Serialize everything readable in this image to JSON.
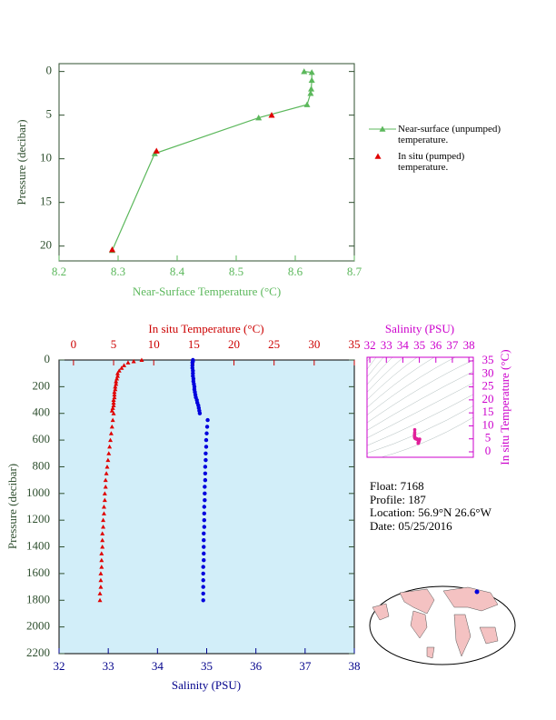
{
  "chart_data": [
    {
      "type": "line",
      "xlabel": "Near-Surface Temperature (°C)",
      "ylabel": "Pressure (decibar)",
      "xlim": [
        8.2,
        8.7
      ],
      "ylim": [
        21.7,
        -0.9
      ],
      "xticks": [
        8.2,
        8.3,
        8.4,
        8.5,
        8.6,
        8.7
      ],
      "yticks": [
        0,
        5,
        10,
        15,
        20
      ],
      "legend": "right",
      "series": [
        {
          "name": "Near-surface (unpumped) temperature.",
          "color": "#5cb85c",
          "style": "line",
          "values": [
            8.615,
            8.628,
            8.628,
            8.627,
            8.626,
            8.62,
            8.538,
            8.362,
            8.29
          ],
          "pressure": [
            0,
            0.1,
            1,
            2,
            2.5,
            3.8,
            5.3,
            9.4,
            20.5
          ]
        },
        {
          "name": "In situ (pumped) temperature.",
          "color": "#e00000",
          "style": "markers",
          "values": [
            8.56,
            8.365,
            8.29
          ],
          "pressure": [
            5,
            9.1,
            20.4
          ]
        }
      ]
    },
    {
      "type": "scatter",
      "xlabel": "Salinity (PSU)",
      "x2label": "In situ Temperature (°C)",
      "ylabel": "Pressure (decibar)",
      "xlim": [
        32,
        38
      ],
      "x2lim": [
        -1.8,
        35
      ],
      "ylim": [
        2200,
        0
      ],
      "xticks": [
        32,
        33,
        34,
        35,
        36,
        37,
        38
      ],
      "x2ticks": [
        0,
        5,
        10,
        15,
        20,
        25,
        30,
        35
      ],
      "yticks": [
        0,
        200,
        400,
        600,
        800,
        1000,
        1200,
        1400,
        1600,
        1800,
        2000,
        2200
      ],
      "pressure": [
        0,
        10,
        20,
        40,
        60,
        80,
        100,
        120,
        140,
        160,
        180,
        200,
        220,
        240,
        260,
        280,
        300,
        320,
        340,
        360,
        380,
        400,
        450,
        500,
        550,
        600,
        650,
        700,
        750,
        800,
        850,
        900,
        950,
        1000,
        1050,
        1100,
        1150,
        1200,
        1250,
        1300,
        1350,
        1400,
        1450,
        1500,
        1550,
        1600,
        1650,
        1700,
        1750,
        1800
      ],
      "series": [
        {
          "color": "#e00000",
          "axis": "x2",
          "values": [
            8.5,
            7.5,
            6.8,
            6.3,
            6,
            5.7,
            5.5,
            5.5,
            5.4,
            5.3,
            5.3,
            5.2,
            5.2,
            5.1,
            5.1,
            5.1,
            5.0,
            5.0,
            5.0,
            4.9,
            4.8,
            5.0,
            4.9,
            4.8,
            4.7,
            4.6,
            4.5,
            4.4,
            4.3,
            4.2,
            4.1,
            4.0,
            4.0,
            3.9,
            3.9,
            3.8,
            3.8,
            3.7,
            3.7,
            3.6,
            3.6,
            3.6,
            3.5,
            3.5,
            3.5,
            3.4,
            3.4,
            3.4,
            3.3,
            3.3
          ]
        },
        {
          "color": "#0000dd",
          "values": [
            34.72,
            34.72,
            34.71,
            34.71,
            34.71,
            34.72,
            34.72,
            34.72,
            34.73,
            34.73,
            34.74,
            34.75,
            34.75,
            34.76,
            34.77,
            34.78,
            34.8,
            34.81,
            34.83,
            34.84,
            34.85,
            34.86,
            35.02,
            35.01,
            35.0,
            34.99,
            34.99,
            34.98,
            34.98,
            34.97,
            34.97,
            34.97,
            34.96,
            34.96,
            34.96,
            34.95,
            34.95,
            34.95,
            34.95,
            34.94,
            34.94,
            34.94,
            34.94,
            34.94,
            34.93,
            34.93,
            34.93,
            34.93,
            34.93,
            34.93
          ]
        }
      ]
    },
    {
      "type": "scatter",
      "xlabel": "Salinity (PSU)",
      "ylabel": "In situ Temperature (°C)",
      "color": "#e0209a",
      "xlim": [
        31.83,
        38.27
      ],
      "ylim": [
        -2.1,
        36.4
      ],
      "xticks": [
        32,
        33,
        34,
        35,
        36,
        37,
        38
      ],
      "yticks": [
        0,
        5,
        10,
        15,
        20,
        25,
        30,
        35
      ]
    }
  ],
  "info": {
    "float": "Float:  7168",
    "profile": "Profile:  187",
    "location": "Location:  56.9°N  26.6°W",
    "date": "Date:  05/25/2016"
  }
}
